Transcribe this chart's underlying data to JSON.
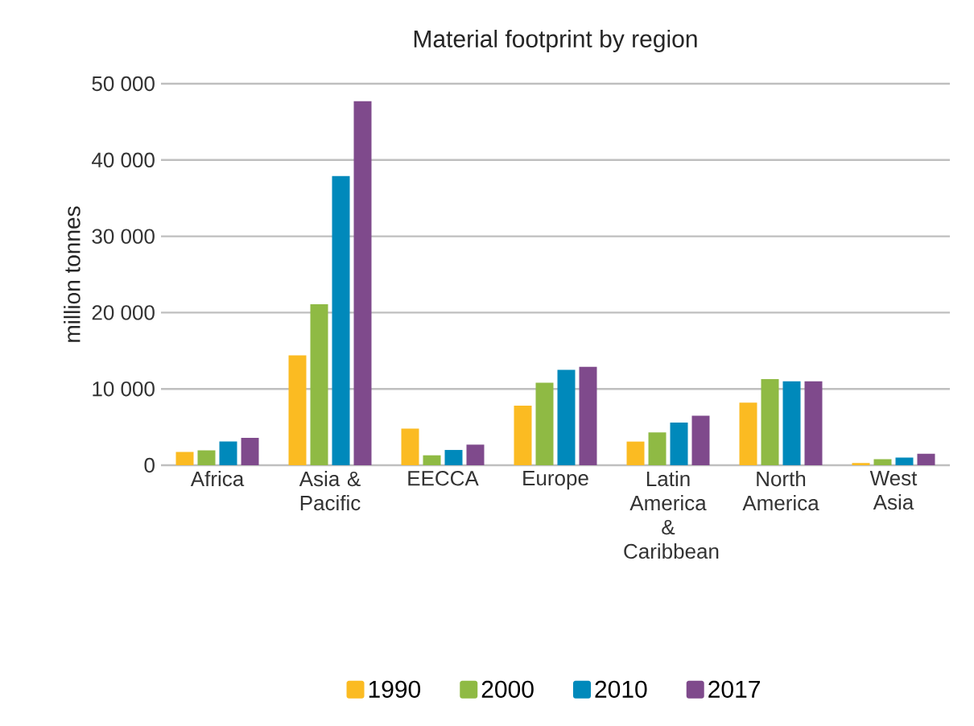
{
  "chart_data": {
    "type": "bar",
    "title": "Material footprint by region",
    "ylabel": "million tonnes",
    "categories": [
      "Africa",
      "Asia & Pacific",
      "EECCA",
      "Europe",
      "Latin America & Caribbean",
      "North America",
      "West Asia"
    ],
    "series": [
      {
        "name": "1990",
        "color": "#fbbb22",
        "values": [
          1750,
          14400,
          4800,
          7800,
          3100,
          8200,
          300
        ]
      },
      {
        "name": "2000",
        "color": "#8fba44",
        "values": [
          1950,
          21100,
          1300,
          10800,
          4300,
          11300,
          800
        ]
      },
      {
        "name": "2010",
        "color": "#0089bb",
        "values": [
          3100,
          37900,
          2000,
          12500,
          5600,
          11000,
          1000
        ]
      },
      {
        "name": "2017",
        "color": "#7f4a8c",
        "values": [
          3600,
          47700,
          2700,
          12900,
          6500,
          11000,
          1500
        ]
      }
    ],
    "ylim": [
      0,
      50000
    ],
    "yticks": [
      {
        "value": 0,
        "label": "0"
      },
      {
        "value": 10000,
        "label": "10 000"
      },
      {
        "value": 20000,
        "label": "20 000"
      },
      {
        "value": 30000,
        "label": "30 000"
      },
      {
        "value": 40000,
        "label": "40 000"
      },
      {
        "value": 50000,
        "label": "50 000"
      }
    ],
    "grid": "y",
    "legend": "bottom"
  }
}
